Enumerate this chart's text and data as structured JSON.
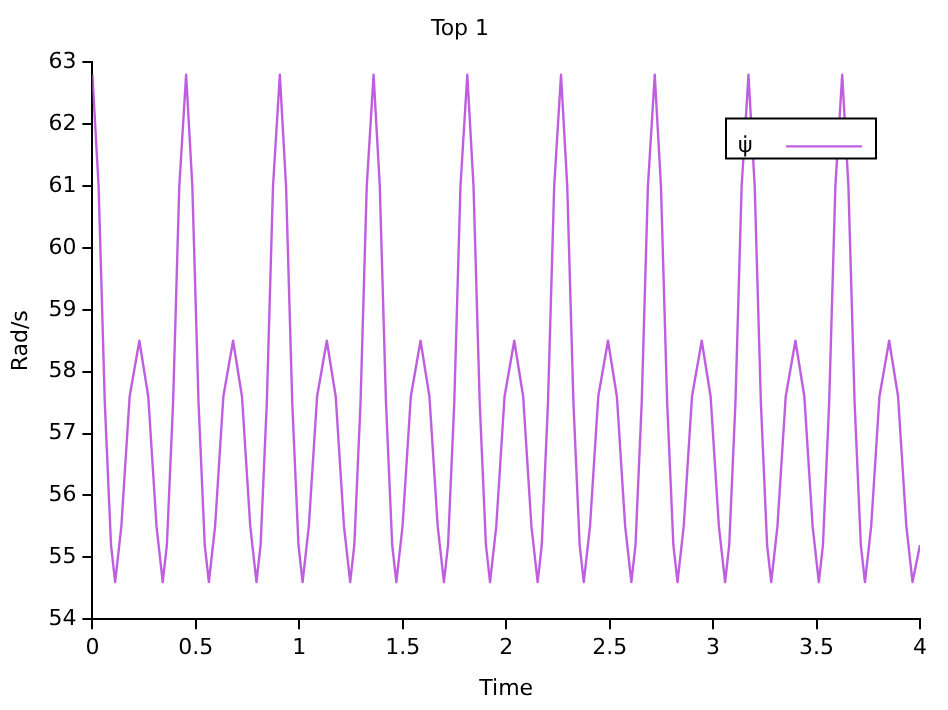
{
  "chart_data": {
    "type": "line",
    "title": "Top 1",
    "xlabel": "Time",
    "ylabel": "Rad/s",
    "xlim": [
      0,
      4
    ],
    "xticks": [
      0,
      0.5,
      1,
      1.5,
      2,
      2.5,
      3,
      3.5,
      4
    ],
    "ylim": [
      54,
      63
    ],
    "yticks": [
      54,
      55,
      56,
      57,
      58,
      59,
      60,
      61,
      62,
      63
    ],
    "grid": false,
    "legend": "top right",
    "marker": "none",
    "line_style": "solid",
    "series": [
      {
        "name": "ψ̇",
        "color": "#bf5fe0",
        "x": [
          0,
          0.03,
          0.06,
          0.09,
          0.11,
          0.14,
          0.18,
          0.227,
          0.27,
          0.31,
          0.34,
          0.36,
          0.39,
          0.42,
          0.453,
          0.483,
          0.513,
          0.543,
          0.563,
          0.593,
          0.633,
          0.68,
          0.723,
          0.763,
          0.793,
          0.813,
          0.843,
          0.873,
          0.906,
          0.936,
          0.966,
          0.996,
          1.016,
          1.046,
          1.086,
          1.133,
          1.176,
          1.216,
          1.246,
          1.266,
          1.296,
          1.326,
          1.359,
          1.389,
          1.419,
          1.449,
          1.469,
          1.499,
          1.539,
          1.586,
          1.629,
          1.669,
          1.699,
          1.719,
          1.749,
          1.779,
          1.812,
          1.842,
          1.872,
          1.902,
          1.922,
          1.952,
          1.992,
          2.039,
          2.082,
          2.122,
          2.152,
          2.172,
          2.202,
          2.232,
          2.265,
          2.295,
          2.325,
          2.355,
          2.375,
          2.405,
          2.445,
          2.492,
          2.535,
          2.575,
          2.605,
          2.625,
          2.655,
          2.685,
          2.718,
          2.748,
          2.778,
          2.808,
          2.828,
          2.858,
          2.898,
          2.945,
          2.988,
          3.028,
          3.058,
          3.078,
          3.108,
          3.138,
          3.171,
          3.201,
          3.231,
          3.261,
          3.281,
          3.311,
          3.351,
          3.398,
          3.441,
          3.481,
          3.511,
          3.531,
          3.561,
          3.591,
          3.624,
          3.654,
          3.684,
          3.714,
          3.734,
          3.764,
          3.804,
          3.851,
          3.894,
          3.934,
          3.964,
          4.0
        ],
        "values": [
          62.8,
          61.0,
          57.5,
          55.2,
          54.6,
          55.5,
          57.6,
          58.5,
          57.6,
          55.5,
          54.6,
          55.2,
          57.5,
          61.0,
          62.8,
          61.0,
          57.5,
          55.2,
          54.6,
          55.5,
          57.6,
          58.5,
          57.6,
          55.5,
          54.6,
          55.2,
          57.5,
          61.0,
          62.8,
          61.0,
          57.5,
          55.2,
          54.6,
          55.5,
          57.6,
          58.5,
          57.6,
          55.5,
          54.6,
          55.2,
          57.5,
          61.0,
          62.8,
          61.0,
          57.5,
          55.2,
          54.6,
          55.5,
          57.6,
          58.5,
          57.6,
          55.5,
          54.6,
          55.2,
          57.5,
          61.0,
          62.8,
          61.0,
          57.5,
          55.2,
          54.6,
          55.5,
          57.6,
          58.5,
          57.6,
          55.5,
          54.6,
          55.2,
          57.5,
          61.0,
          62.8,
          61.0,
          57.5,
          55.2,
          54.6,
          55.5,
          57.6,
          58.5,
          57.6,
          55.5,
          54.6,
          55.2,
          57.5,
          61.0,
          62.8,
          61.0,
          57.5,
          55.2,
          54.6,
          55.5,
          57.6,
          58.5,
          57.6,
          55.5,
          54.6,
          55.2,
          57.5,
          61.0,
          62.8,
          61.0,
          57.5,
          55.2,
          54.6,
          55.5,
          57.6,
          58.5,
          57.6,
          55.5,
          54.6,
          55.2,
          57.5,
          61.0,
          62.8,
          61.0,
          57.5,
          55.2,
          54.6,
          55.5,
          57.6,
          58.5,
          57.6,
          55.5,
          54.6,
          55.2
        ]
      }
    ]
  }
}
